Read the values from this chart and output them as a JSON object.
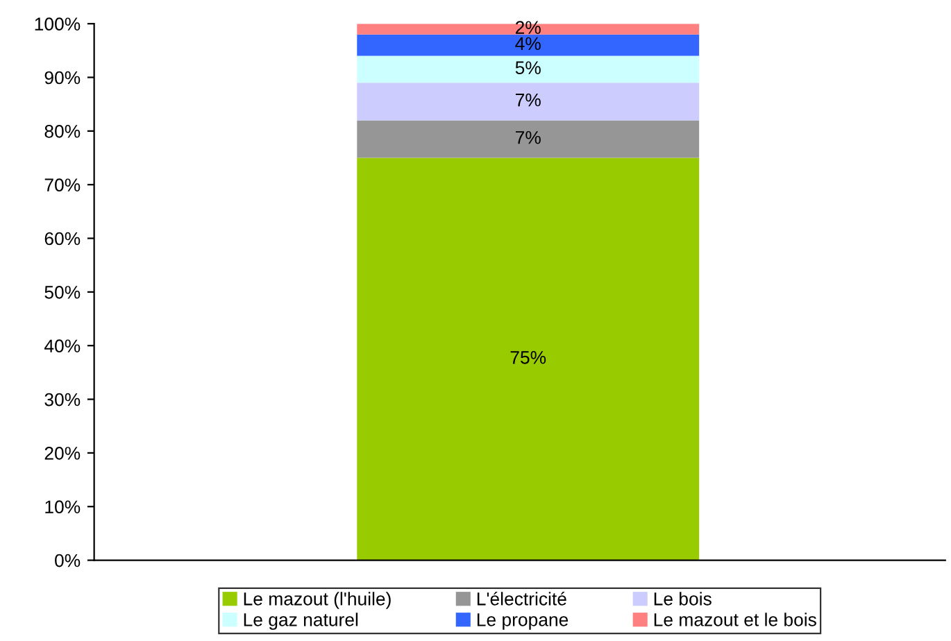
{
  "chart_data": {
    "type": "bar",
    "stacked": true,
    "categories": [
      null
    ],
    "series": [
      {
        "name": "Le mazout (l'huile)",
        "color": "#99cc00",
        "values": [
          75
        ],
        "value_labels": [
          "75%"
        ]
      },
      {
        "name": "L'électricité",
        "color": "#969696",
        "values": [
          7
        ],
        "value_labels": [
          "7%"
        ]
      },
      {
        "name": "Le bois",
        "color": "#ccccff",
        "values": [
          7
        ],
        "value_labels": [
          "7%"
        ]
      },
      {
        "name": "Le gaz naturel",
        "color": "#ccffff",
        "values": [
          5
        ],
        "value_labels": [
          "5%"
        ]
      },
      {
        "name": "Le propane",
        "color": "#3366ff",
        "values": [
          4
        ],
        "value_labels": [
          "4%"
        ]
      },
      {
        "name": "Le mazout et le bois",
        "color": "#ff8080",
        "values": [
          2
        ],
        "value_labels": [
          "2%"
        ]
      }
    ],
    "ylim": [
      0,
      100
    ],
    "yticks": [
      {
        "value": 0,
        "label": "0%"
      },
      {
        "value": 10,
        "label": "10%"
      },
      {
        "value": 20,
        "label": "20%"
      },
      {
        "value": 30,
        "label": "30%"
      },
      {
        "value": 40,
        "label": "40%"
      },
      {
        "value": 50,
        "label": "50%"
      },
      {
        "value": 60,
        "label": "60%"
      },
      {
        "value": 70,
        "label": "70%"
      },
      {
        "value": 80,
        "label": "80%"
      },
      {
        "value": 90,
        "label": "90%"
      },
      {
        "value": 100,
        "label": "100%"
      }
    ],
    "grid": false,
    "legend": "bottom"
  }
}
